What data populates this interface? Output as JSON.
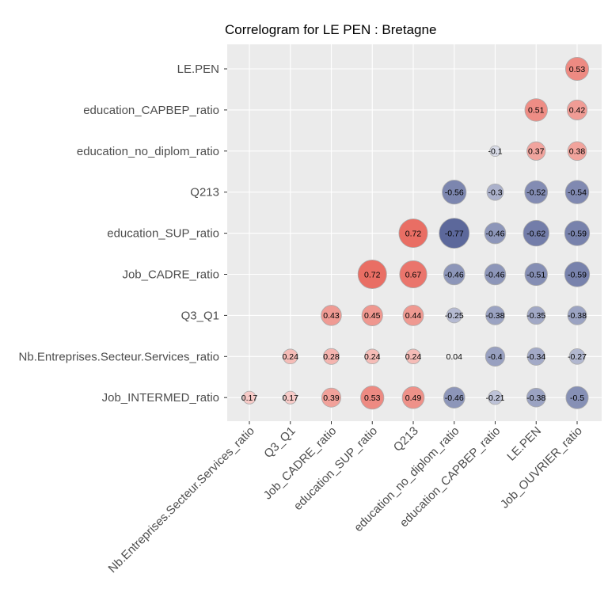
{
  "chart_data": {
    "type": "heatmap",
    "title": "Correlogram for LE PEN : Bretagne",
    "xlabel": "",
    "ylabel": "",
    "x_categories": [
      "Nb.Entreprises.Secteur.Services_ratio",
      "Q3_Q1",
      "Job_CADRE_ratio",
      "education_SUP_ratio",
      "Q213",
      "education_no_diplom_ratio",
      "education_CAPBEP_ratio",
      "LE.PEN",
      "Job_OUVRIER_ratio"
    ],
    "y_categories": [
      "LE.PEN",
      "education_CAPBEP_ratio",
      "education_no_diplom_ratio",
      "Q213",
      "education_SUP_ratio",
      "Job_CADRE_ratio",
      "Q3_Q1",
      "Nb.Entreprises.Secteur.Services_ratio",
      "Job_INTERMED_ratio"
    ],
    "cells": [
      {
        "x": "Job_OUVRIER_ratio",
        "y": "LE.PEN",
        "value": 0.53,
        "label": "0.53"
      },
      {
        "x": "LE.PEN",
        "y": "education_CAPBEP_ratio",
        "value": 0.51,
        "label": "0.51"
      },
      {
        "x": "Job_OUVRIER_ratio",
        "y": "education_CAPBEP_ratio",
        "value": 0.42,
        "label": "0.42"
      },
      {
        "x": "education_CAPBEP_ratio",
        "y": "education_no_diplom_ratio",
        "value": -0.1,
        "label": "-0.1"
      },
      {
        "x": "LE.PEN",
        "y": "education_no_diplom_ratio",
        "value": 0.37,
        "label": "0.37"
      },
      {
        "x": "Job_OUVRIER_ratio",
        "y": "education_no_diplom_ratio",
        "value": 0.38,
        "label": "0.38"
      },
      {
        "x": "education_no_diplom_ratio",
        "y": "Q213",
        "value": -0.56,
        "label": "-0.56"
      },
      {
        "x": "education_CAPBEP_ratio",
        "y": "Q213",
        "value": -0.3,
        "label": "-0.3"
      },
      {
        "x": "LE.PEN",
        "y": "Q213",
        "value": -0.52,
        "label": "-0.52"
      },
      {
        "x": "Job_OUVRIER_ratio",
        "y": "Q213",
        "value": -0.54,
        "label": "-0.54"
      },
      {
        "x": "Q213",
        "y": "education_SUP_ratio",
        "value": 0.72,
        "label": "0.72"
      },
      {
        "x": "education_no_diplom_ratio",
        "y": "education_SUP_ratio",
        "value": -0.77,
        "label": "-0.77"
      },
      {
        "x": "education_CAPBEP_ratio",
        "y": "education_SUP_ratio",
        "value": -0.46,
        "label": "-0.46"
      },
      {
        "x": "LE.PEN",
        "y": "education_SUP_ratio",
        "value": -0.62,
        "label": "-0.62"
      },
      {
        "x": "Job_OUVRIER_ratio",
        "y": "education_SUP_ratio",
        "value": -0.59,
        "label": "-0.59"
      },
      {
        "x": "education_SUP_ratio",
        "y": "Job_CADRE_ratio",
        "value": 0.72,
        "label": "0.72"
      },
      {
        "x": "Q213",
        "y": "Job_CADRE_ratio",
        "value": 0.67,
        "label": "0.67"
      },
      {
        "x": "education_no_diplom_ratio",
        "y": "Job_CADRE_ratio",
        "value": -0.46,
        "label": "-0.46"
      },
      {
        "x": "education_CAPBEP_ratio",
        "y": "Job_CADRE_ratio",
        "value": -0.46,
        "label": "-0.46"
      },
      {
        "x": "LE.PEN",
        "y": "Job_CADRE_ratio",
        "value": -0.51,
        "label": "-0.51"
      },
      {
        "x": "Job_OUVRIER_ratio",
        "y": "Job_CADRE_ratio",
        "value": -0.59,
        "label": "-0.59"
      },
      {
        "x": "Job_CADRE_ratio",
        "y": "Q3_Q1",
        "value": 0.43,
        "label": "0.43"
      },
      {
        "x": "education_SUP_ratio",
        "y": "Q3_Q1",
        "value": 0.45,
        "label": "0.45"
      },
      {
        "x": "Q213",
        "y": "Q3_Q1",
        "value": 0.44,
        "label": "0.44"
      },
      {
        "x": "education_no_diplom_ratio",
        "y": "Q3_Q1",
        "value": -0.25,
        "label": "-0.25"
      },
      {
        "x": "education_CAPBEP_ratio",
        "y": "Q3_Q1",
        "value": -0.38,
        "label": "-0.38"
      },
      {
        "x": "LE.PEN",
        "y": "Q3_Q1",
        "value": -0.35,
        "label": "-0.35"
      },
      {
        "x": "Job_OUVRIER_ratio",
        "y": "Q3_Q1",
        "value": -0.38,
        "label": "-0.38"
      },
      {
        "x": "Q3_Q1",
        "y": "Nb.Entreprises.Secteur.Services_ratio",
        "value": 0.24,
        "label": "0.24"
      },
      {
        "x": "Job_CADRE_ratio",
        "y": "Nb.Entreprises.Secteur.Services_ratio",
        "value": 0.28,
        "label": "0.28"
      },
      {
        "x": "education_SUP_ratio",
        "y": "Nb.Entreprises.Secteur.Services_ratio",
        "value": 0.24,
        "label": "0.24"
      },
      {
        "x": "Q213",
        "y": "Nb.Entreprises.Secteur.Services_ratio",
        "value": 0.24,
        "label": "0.24"
      },
      {
        "x": "education_no_diplom_ratio",
        "y": "Nb.Entreprises.Secteur.Services_ratio",
        "value": 0.04,
        "label": "0.04"
      },
      {
        "x": "education_CAPBEP_ratio",
        "y": "Nb.Entreprises.Secteur.Services_ratio",
        "value": -0.4,
        "label": "-0.4"
      },
      {
        "x": "LE.PEN",
        "y": "Nb.Entreprises.Secteur.Services_ratio",
        "value": -0.34,
        "label": "-0.34"
      },
      {
        "x": "Job_OUVRIER_ratio",
        "y": "Nb.Entreprises.Secteur.Services_ratio",
        "value": -0.27,
        "label": "-0.27"
      },
      {
        "x": "Nb.Entreprises.Secteur.Services_ratio",
        "y": "Job_INTERMED_ratio",
        "value": 0.17,
        "label": "0.17"
      },
      {
        "x": "Q3_Q1",
        "y": "Job_INTERMED_ratio",
        "value": 0.17,
        "label": "0.17"
      },
      {
        "x": "Job_CADRE_ratio",
        "y": "Job_INTERMED_ratio",
        "value": 0.39,
        "label": "0.39"
      },
      {
        "x": "education_SUP_ratio",
        "y": "Job_INTERMED_ratio",
        "value": 0.53,
        "label": "0.53"
      },
      {
        "x": "Q213",
        "y": "Job_INTERMED_ratio",
        "value": 0.49,
        "label": "0.49"
      },
      {
        "x": "education_no_diplom_ratio",
        "y": "Job_INTERMED_ratio",
        "value": -0.46,
        "label": "-0.46"
      },
      {
        "x": "education_CAPBEP_ratio",
        "y": "Job_INTERMED_ratio",
        "value": -0.21,
        "label": "-0.21"
      },
      {
        "x": "LE.PEN",
        "y": "Job_INTERMED_ratio",
        "value": -0.38,
        "label": "-0.38"
      },
      {
        "x": "Job_OUVRIER_ratio",
        "y": "Job_INTERMED_ratio",
        "value": -0.5,
        "label": "-0.5"
      }
    ],
    "value_range": [
      -1,
      1
    ],
    "colors": {
      "negative": "#3b4a87",
      "neutral": "#ffffff",
      "positive": "#e3493c",
      "panel_background": "#ebebeb",
      "grid": "#ffffff",
      "circle_outline": "#aaaaaa"
    },
    "grid": true,
    "legend": "none"
  }
}
